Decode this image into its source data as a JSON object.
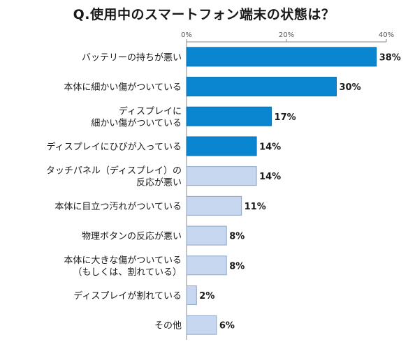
{
  "chart_data": {
    "type": "bar",
    "orientation": "horizontal",
    "title": "Q.使用中のスマートフォン端末の状態は？",
    "categories": [
      [
        "バッテリーの持ちが悪い"
      ],
      [
        "本体に細かい傷がついている"
      ],
      [
        "ディスプレイに",
        "細かい傷がついている"
      ],
      [
        "ディスプレイにひびが入っている"
      ],
      [
        "タッチパネル（ディスプレイ）の",
        "反応が悪い"
      ],
      [
        "本体に目立つ汚れがついている"
      ],
      [
        "物理ボタンの反応が悪い"
      ],
      [
        "本体に大きな傷がついている",
        "（もしくは、割れている）"
      ],
      [
        "ディスプレイが割れている"
      ],
      [
        "その他"
      ]
    ],
    "values": [
      38,
      30,
      17,
      14,
      14,
      11,
      8,
      8,
      2,
      6
    ],
    "value_labels": [
      "38%",
      "30%",
      "17%",
      "14%",
      "14%",
      "11%",
      "8%",
      "8%",
      "2%",
      "6%"
    ],
    "highlighted": [
      true,
      true,
      true,
      true,
      false,
      false,
      false,
      false,
      false,
      false
    ],
    "xlim": [
      0,
      40
    ],
    "ticks": [
      0,
      20,
      40
    ],
    "tick_labels": [
      "0%",
      "20%",
      "40%"
    ],
    "grid": false,
    "colors": {
      "highlight_fill": "#0a85d0",
      "highlight_stroke": "#0a6fb0",
      "normal_fill": "#c7d7ef",
      "normal_stroke": "#8aa4c8",
      "axis": "#888888"
    }
  }
}
